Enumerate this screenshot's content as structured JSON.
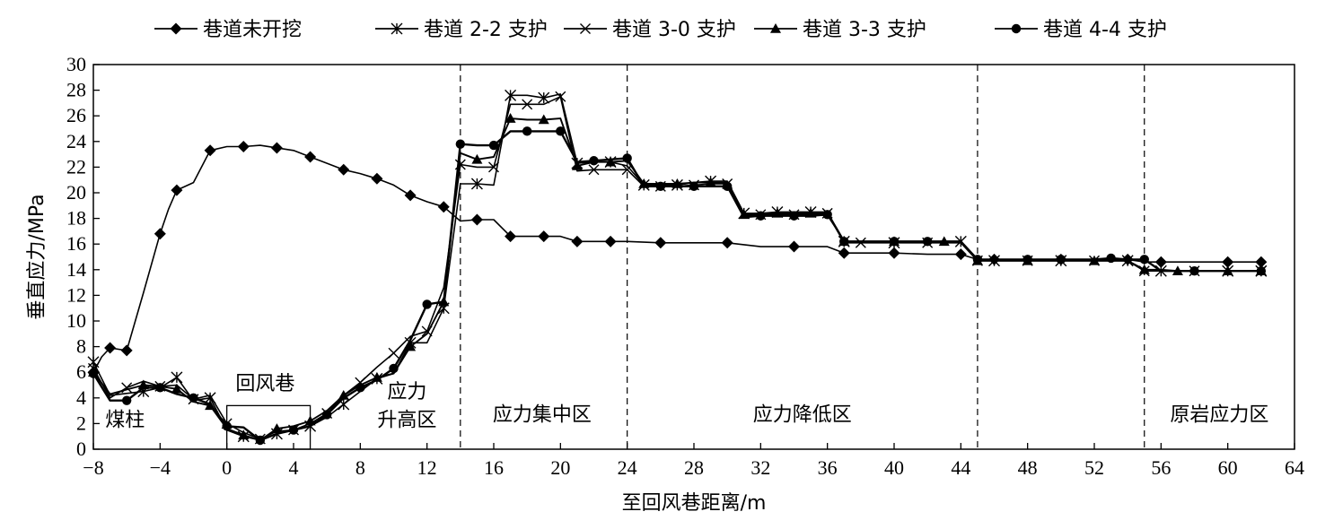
{
  "chart_data": {
    "type": "line",
    "title": "",
    "xlabel": "至回风巷距离/m",
    "ylabel": "垂直应力/MPa",
    "xlim": [
      -8,
      64
    ],
    "ylim": [
      0,
      30
    ],
    "xticks": [
      -8,
      -4,
      0,
      4,
      8,
      12,
      16,
      20,
      24,
      28,
      32,
      36,
      40,
      44,
      48,
      52,
      56,
      60,
      64
    ],
    "yticks": [
      0,
      2,
      4,
      6,
      8,
      10,
      12,
      14,
      16,
      18,
      20,
      22,
      24,
      26,
      28,
      30
    ],
    "legend_position": "top",
    "grid": false,
    "dashed_lines_x": [
      14,
      24,
      45,
      55
    ],
    "annotations": [
      {
        "text": "煤柱",
        "x": -6.1,
        "y": 1.8
      },
      {
        "text": "回风巷",
        "x": 2.3,
        "y": 4.6
      },
      {
        "text": "应力",
        "x": 10.8,
        "y": 4.0
      },
      {
        "text": "升高区",
        "x": 10.8,
        "y": 1.8
      },
      {
        "text": "应力集中区",
        "x": 18.9,
        "y": 2.2
      },
      {
        "text": "应力降低区",
        "x": 34.5,
        "y": 2.2
      },
      {
        "text": "原岩应力区",
        "x": 59.5,
        "y": 2.2
      }
    ],
    "roadway_box": {
      "x0": 0,
      "x1": 5,
      "y0": 0,
      "y1": 3.4
    },
    "series": [
      {
        "name": "巷道未开挖",
        "marker": "diamond",
        "x": [
          -8,
          -7.5,
          -7,
          -6.5,
          -6,
          -5,
          -4,
          -3.5,
          -3,
          -2,
          -1,
          0,
          1,
          2,
          3,
          4,
          5,
          6,
          7,
          8,
          9,
          10,
          11,
          12,
          13,
          14,
          15,
          16,
          17,
          18,
          19,
          20,
          21,
          22,
          23,
          24,
          26,
          28,
          30,
          32,
          34,
          36,
          37,
          38,
          40,
          42,
          44,
          45,
          46,
          48,
          50,
          52,
          54,
          55,
          56,
          58,
          60,
          62
        ],
        "y": [
          6.0,
          7.2,
          7.9,
          7.8,
          7.7,
          12.2,
          16.8,
          18.7,
          20.2,
          20.8,
          23.3,
          23.6,
          23.6,
          23.7,
          23.5,
          23.3,
          22.8,
          22.3,
          21.8,
          21.5,
          21.1,
          20.6,
          19.8,
          19.3,
          18.9,
          17.8,
          17.9,
          17.9,
          16.6,
          16.6,
          16.6,
          16.6,
          16.2,
          16.2,
          16.2,
          16.2,
          16.1,
          16.1,
          16.1,
          15.8,
          15.8,
          15.8,
          15.3,
          15.3,
          15.3,
          15.2,
          15.2,
          14.8,
          14.8,
          14.8,
          14.8,
          14.8,
          14.8,
          14.6,
          14.6,
          14.6,
          14.6,
          14.6
        ]
      },
      {
        "name": "巷道 2-2 支护",
        "marker": "asterisk",
        "x": [
          -8,
          -7,
          -5,
          -4,
          -3,
          -2,
          -1,
          0,
          1,
          2,
          3,
          4,
          5,
          6,
          7,
          8,
          9,
          10,
          11,
          12,
          13,
          14,
          15,
          16,
          17,
          18,
          19,
          20,
          21,
          22,
          23,
          24,
          25,
          26,
          27,
          28,
          29,
          30,
          31,
          32,
          33,
          34,
          35,
          36,
          37,
          38,
          40,
          42,
          44,
          45,
          46,
          48,
          50,
          52,
          54,
          55,
          56,
          58,
          60,
          62
        ],
        "y": [
          6.8,
          4.2,
          4.5,
          4.8,
          5.6,
          3.8,
          4.0,
          1.5,
          1.0,
          0.7,
          1.2,
          1.5,
          1.8,
          2.5,
          3.5,
          4.5,
          5.5,
          5.9,
          8.3,
          8.3,
          11.0,
          20.7,
          20.7,
          20.6,
          27.6,
          27.6,
          27.4,
          27.7,
          22.3,
          22.4,
          22.4,
          22.1,
          20.6,
          20.6,
          20.6,
          20.8,
          20.9,
          20.9,
          18.4,
          18.4,
          18.5,
          18.5,
          18.5,
          18.5,
          16.2,
          16.2,
          16.1,
          16.2,
          16.2,
          14.7,
          14.7,
          14.7,
          14.7,
          14.7,
          14.7,
          13.9,
          13.9,
          13.9,
          13.9,
          13.9
        ]
      },
      {
        "name": "巷道 3-0 支护",
        "marker": "x",
        "x": [
          -8,
          -7,
          -6,
          -5,
          -4,
          -3,
          -2,
          -1,
          0,
          1,
          2,
          3,
          4,
          5,
          6,
          7,
          8,
          9,
          10,
          11,
          12,
          13,
          14,
          15,
          16,
          17,
          18,
          19,
          20,
          21,
          22,
          23,
          24,
          25,
          26,
          27,
          28,
          29,
          30,
          31,
          32,
          33,
          34,
          35,
          36,
          37,
          38,
          40,
          42,
          44,
          45,
          46,
          48,
          50,
          52,
          54,
          55,
          56,
          58,
          60,
          62
        ],
        "y": [
          6.3,
          4.0,
          4.8,
          5.3,
          4.9,
          5.0,
          3.9,
          4.2,
          2.0,
          1.3,
          0.8,
          1.4,
          1.5,
          2.0,
          2.8,
          4.2,
          5.2,
          6.4,
          7.5,
          8.8,
          9.2,
          12.6,
          22.2,
          22.0,
          22.0,
          26.9,
          26.9,
          26.9,
          27.5,
          21.7,
          21.8,
          21.8,
          21.8,
          20.5,
          20.5,
          20.5,
          20.6,
          20.7,
          20.7,
          18.2,
          18.3,
          18.3,
          18.3,
          18.3,
          18.4,
          16.1,
          16.1,
          16.1,
          16.1,
          16.1,
          14.7,
          14.7,
          14.7,
          14.7,
          14.7,
          14.7,
          13.9,
          13.9,
          13.9,
          13.9,
          13.9
        ]
      },
      {
        "name": "巷道 3-3 支护",
        "marker": "triangle",
        "x": [
          -8,
          -7,
          -5,
          -4,
          -3,
          -2,
          -1,
          0,
          1,
          2,
          3,
          4,
          5,
          6,
          7,
          8,
          9,
          10,
          11,
          12,
          13,
          14,
          15,
          16,
          17,
          18,
          19,
          20,
          21,
          22,
          23,
          24,
          25,
          26,
          27,
          28,
          29,
          30,
          31,
          32,
          33,
          34,
          35,
          36,
          37,
          38,
          40,
          42,
          43,
          44,
          45,
          46,
          48,
          50,
          52,
          54,
          55,
          56,
          57,
          58,
          60,
          62
        ],
        "y": [
          6.0,
          4.3,
          5.0,
          4.9,
          4.7,
          3.7,
          3.4,
          1.6,
          1.1,
          0.7,
          1.6,
          1.8,
          2.2,
          3.0,
          4.2,
          5.0,
          5.6,
          5.9,
          8.0,
          9.0,
          11.5,
          23.1,
          22.6,
          22.8,
          25.8,
          25.7,
          25.7,
          25.8,
          22.1,
          22.4,
          22.4,
          22.5,
          20.7,
          20.7,
          20.7,
          20.8,
          20.8,
          20.8,
          18.3,
          18.4,
          18.4,
          18.4,
          18.4,
          18.4,
          16.2,
          16.2,
          16.2,
          16.2,
          16.2,
          16.2,
          14.7,
          14.7,
          14.7,
          14.7,
          14.7,
          14.7,
          14.0,
          14.0,
          13.9,
          13.9,
          13.9,
          13.9
        ]
      },
      {
        "name": "巷道 4-4 支护",
        "marker": "circle",
        "x": [
          -8,
          -7,
          -6,
          -5,
          -4,
          -3,
          -2,
          -1,
          0,
          1,
          2,
          3,
          4,
          5,
          6,
          7,
          8,
          9,
          10,
          11,
          12,
          13,
          14,
          15,
          16,
          17,
          18,
          19,
          20,
          21,
          22,
          23,
          24,
          25,
          26,
          27,
          28,
          29,
          30,
          31,
          32,
          33,
          34,
          35,
          36,
          36.5,
          37,
          38,
          40,
          41,
          42,
          44,
          45,
          46,
          48,
          49,
          50,
          52,
          53,
          54,
          55,
          56,
          58,
          60,
          62
        ],
        "y": [
          5.9,
          3.8,
          3.8,
          4.8,
          4.8,
          4.3,
          4.0,
          3.5,
          1.8,
          1.7,
          0.7,
          1.2,
          1.5,
          1.8,
          2.7,
          4.0,
          4.8,
          5.4,
          6.3,
          8.5,
          11.3,
          11.5,
          23.8,
          23.7,
          23.7,
          24.8,
          24.8,
          24.8,
          24.8,
          22.4,
          22.5,
          22.6,
          22.7,
          20.5,
          20.5,
          20.5,
          20.5,
          20.5,
          20.5,
          18.1,
          18.2,
          18.2,
          18.2,
          18.2,
          18.3,
          17.3,
          16.2,
          16.2,
          16.2,
          16.2,
          16.2,
          16.2,
          14.8,
          14.8,
          14.8,
          14.8,
          14.8,
          14.8,
          14.9,
          14.8,
          14.8,
          13.9,
          13.9,
          13.9,
          13.9
        ]
      }
    ]
  }
}
